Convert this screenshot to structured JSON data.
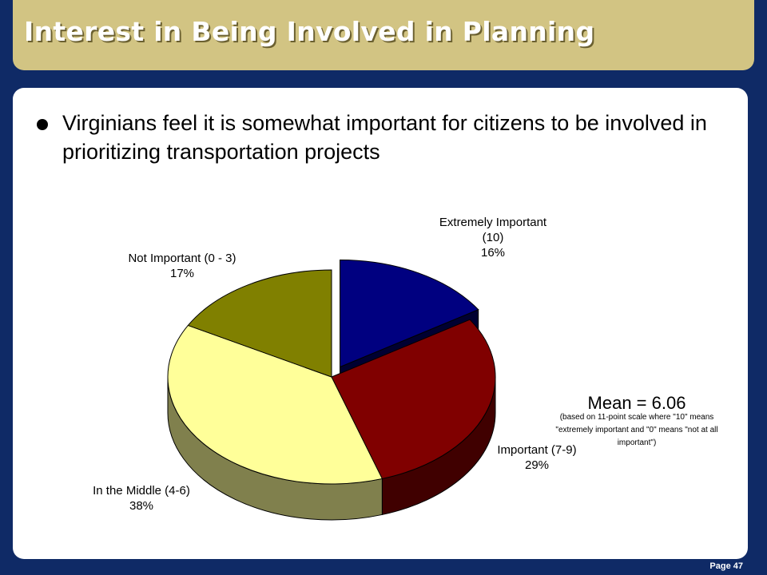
{
  "slide": {
    "title": "Interest in Being Involved in Planning",
    "bullet": "Virginians feel it is somewhat important for citizens to be involved in prioritizing transportation projects",
    "footer": "Page 47"
  },
  "chart_data": {
    "type": "pie",
    "style": "3d-exploded",
    "slices": [
      {
        "label": [
          "Extremely Important",
          "(10)"
        ],
        "value": 16,
        "display": "16%",
        "color": "#000080",
        "exploded": true
      },
      {
        "label": [
          "Important (7-9)"
        ],
        "value": 29,
        "display": "29%",
        "color": "#800000",
        "exploded": false
      },
      {
        "label": [
          "In the Middle (4-6)"
        ],
        "value": 38,
        "display": "38%",
        "color": "#ffff99",
        "exploded": false
      },
      {
        "label": [
          "Not Important (0 - 3)"
        ],
        "value": 17,
        "display": "17%",
        "color": "#808000",
        "exploded": false
      }
    ],
    "annotation": {
      "heading": "Mean = 6.06",
      "lines": [
        "(based on 11-point scale where \"10\" means",
        "\"extremely important and \"0\" means \"not at all",
        "important\")"
      ]
    }
  }
}
